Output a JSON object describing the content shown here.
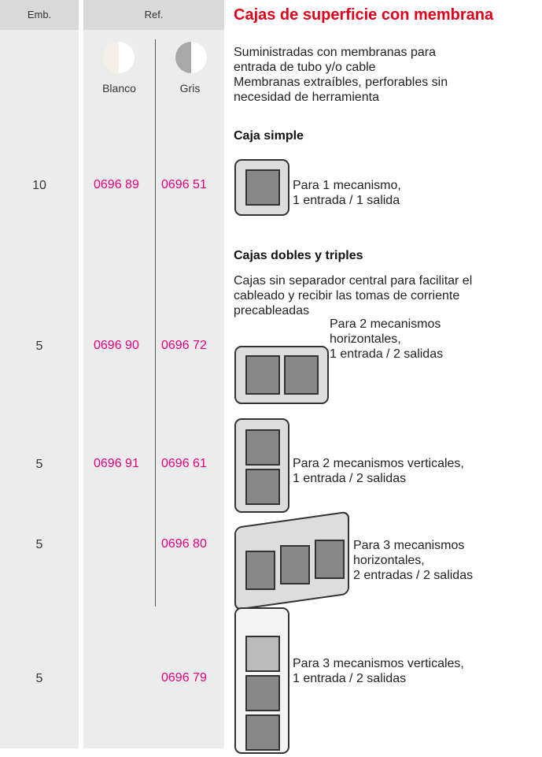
{
  "header": {
    "emb": "Emb.",
    "ref": "Ref.",
    "title": "Cajas de superficie con membrana"
  },
  "finishes": [
    "Blanco",
    "Gris"
  ],
  "intro": [
    "Suministradas con membranas para",
    "entrada de tubo y/o cable",
    "Membranas extraíbles, perforables sin",
    "necesidad de herramienta"
  ],
  "sections": [
    {
      "heading": "Caja simple"
    },
    {
      "heading": "Cajas dobles y triples",
      "description": [
        "Cajas sin separador central para facilitar el",
        "cableado y recibir las tomas de corriente",
        "precableadas"
      ]
    }
  ],
  "rows": [
    {
      "emb": "10",
      "blanco": "0696 89",
      "gris": "0696 51",
      "description": [
        "Para 1 mecanismo,",
        "1 entrada / 1 salida"
      ]
    },
    {
      "emb": "5",
      "blanco": "0696 90",
      "gris": "0696 72",
      "description": [
        "Para 2 mecanismos",
        "horizontales,",
        "1 entrada / 2 salidas"
      ]
    },
    {
      "emb": "5",
      "blanco": "0696 91",
      "gris": "0696 61",
      "description": [
        "Para 2 mecanismos verticales,",
        "1 entrada / 2 salidas"
      ]
    },
    {
      "emb": "5",
      "gris": "0696 80",
      "description": [
        "Para 3 mecanismos",
        "horizontales,",
        "2 entradas / 2 salidas"
      ]
    },
    {
      "emb": "5",
      "gris": "0696 79",
      "description": [
        "Para 3 mecanismos verticales,",
        "1 entrada / 2 salidas"
      ]
    }
  ]
}
